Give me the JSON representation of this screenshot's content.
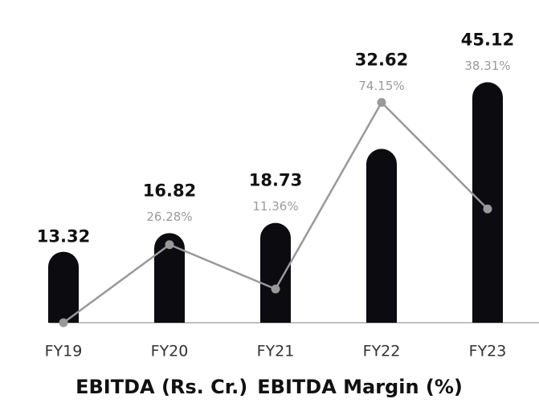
{
  "chart_data": {
    "type": "bar",
    "categories": [
      "FY19",
      "FY20",
      "FY21",
      "FY22",
      "FY23"
    ],
    "series": [
      {
        "name": "EBITDA (Rs. Cr.)",
        "color": "#0b0b10",
        "values": [
          13.32,
          16.82,
          18.73,
          32.62,
          45.12
        ]
      },
      {
        "name": "EBITDA Margin (%)",
        "color": "#999999",
        "type": "line",
        "axis": "y2",
        "values": [
          0,
          26.28,
          11.36,
          74.15,
          38.31
        ],
        "value_labels": [
          null,
          "26.28%",
          "11.36%",
          "74.15%",
          "38.31%"
        ]
      }
    ],
    "ylim": [
      0,
      50
    ],
    "y2lim": [
      0,
      80
    ]
  }
}
